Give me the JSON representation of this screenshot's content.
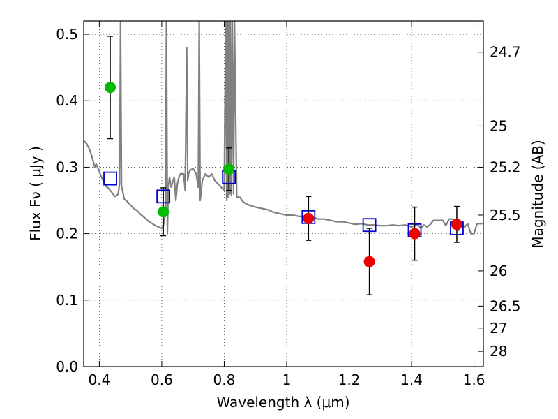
{
  "chart_data": {
    "type": "scatter",
    "xlabel": "Wavelength  λ (μm)",
    "ylabel": "Flux  Fν  ( μJy )",
    "ylabel_right": "Magnitude (AB)",
    "xlim": [
      0.35,
      1.63
    ],
    "ylim": [
      0.0,
      0.52
    ],
    "grid": true,
    "x_ticks": [
      {
        "value": 0.4,
        "label": "0.4"
      },
      {
        "value": 0.6,
        "label": "0.6"
      },
      {
        "value": 0.8,
        "label": "0.8"
      },
      {
        "value": 1.0,
        "label": "1"
      },
      {
        "value": 1.2,
        "label": "1.2"
      },
      {
        "value": 1.4,
        "label": "1.4"
      },
      {
        "value": 1.6,
        "label": "1.6"
      }
    ],
    "y_ticks": [
      {
        "value": 0.0,
        "label": "0.0"
      },
      {
        "value": 0.1,
        "label": "0.1"
      },
      {
        "value": 0.2,
        "label": "0.2"
      },
      {
        "value": 0.3,
        "label": "0.3"
      },
      {
        "value": 0.4,
        "label": "0.4"
      },
      {
        "value": 0.5,
        "label": "0.5"
      }
    ],
    "right_ticks": [
      {
        "flux": 0.473,
        "label": "24.7"
      },
      {
        "flux": 0.362,
        "label": "25"
      },
      {
        "flux": 0.3,
        "label": "25.2"
      },
      {
        "flux": 0.228,
        "label": "25.5"
      },
      {
        "flux": 0.144,
        "label": "26"
      },
      {
        "flux": 0.091,
        "label": "26.5"
      },
      {
        "flux": 0.058,
        "label": "27"
      },
      {
        "flux": 0.023,
        "label": "28"
      }
    ],
    "series": [
      {
        "color": "#808080",
        "kind": "line",
        "x": [
          0.35,
          0.36,
          0.37,
          0.38,
          0.385,
          0.39,
          0.4,
          0.41,
          0.42,
          0.43,
          0.44,
          0.45,
          0.46,
          0.465,
          0.468,
          0.471,
          0.48,
          0.49,
          0.5,
          0.51,
          0.52,
          0.53,
          0.54,
          0.55,
          0.56,
          0.57,
          0.58,
          0.59,
          0.6,
          0.605,
          0.612,
          0.615,
          0.618,
          0.621,
          0.625,
          0.63,
          0.64,
          0.645,
          0.65,
          0.655,
          0.66,
          0.67,
          0.675,
          0.68,
          0.683,
          0.686,
          0.69,
          0.7,
          0.71,
          0.717,
          0.72,
          0.723,
          0.73,
          0.74,
          0.75,
          0.76,
          0.77,
          0.78,
          0.79,
          0.8,
          0.805,
          0.808,
          0.81,
          0.812,
          0.815,
          0.818,
          0.82,
          0.823,
          0.826,
          0.83,
          0.833,
          0.84,
          0.85,
          0.86,
          0.87,
          0.88,
          0.9,
          0.92,
          0.94,
          0.96,
          0.98,
          1.0,
          1.02,
          1.04,
          1.06,
          1.08,
          1.1,
          1.12,
          1.14,
          1.16,
          1.18,
          1.2,
          1.22,
          1.24,
          1.26,
          1.28,
          1.3,
          1.32,
          1.34,
          1.36,
          1.38,
          1.4,
          1.41,
          1.42,
          1.43,
          1.44,
          1.45,
          1.46,
          1.47,
          1.48,
          1.49,
          1.5,
          1.51,
          1.52,
          1.53,
          1.54,
          1.55,
          1.56,
          1.57,
          1.58,
          1.59,
          1.6,
          1.61,
          1.62,
          1.63
        ],
        "y": [
          0.34,
          0.335,
          0.325,
          0.31,
          0.3,
          0.305,
          0.293,
          0.282,
          0.272,
          0.268,
          0.262,
          0.256,
          0.259,
          0.275,
          0.52,
          0.272,
          0.252,
          0.248,
          0.243,
          0.238,
          0.235,
          0.23,
          0.226,
          0.222,
          0.218,
          0.215,
          0.212,
          0.21,
          0.208,
          0.212,
          0.23,
          0.52,
          0.2,
          0.27,
          0.285,
          0.27,
          0.285,
          0.25,
          0.275,
          0.285,
          0.29,
          0.29,
          0.265,
          0.48,
          0.28,
          0.29,
          0.295,
          0.298,
          0.29,
          0.27,
          0.52,
          0.25,
          0.28,
          0.29,
          0.285,
          0.29,
          0.28,
          0.275,
          0.27,
          0.265,
          0.52,
          0.25,
          0.52,
          0.255,
          0.52,
          0.26,
          0.52,
          0.258,
          0.52,
          0.26,
          0.52,
          0.255,
          0.255,
          0.248,
          0.245,
          0.243,
          0.24,
          0.238,
          0.236,
          0.232,
          0.23,
          0.228,
          0.228,
          0.226,
          0.226,
          0.225,
          0.222,
          0.222,
          0.22,
          0.218,
          0.218,
          0.216,
          0.214,
          0.215,
          0.213,
          0.213,
          0.212,
          0.212,
          0.213,
          0.212,
          0.213,
          0.21,
          0.212,
          0.214,
          0.208,
          0.213,
          0.21,
          0.214,
          0.22,
          0.22,
          0.22,
          0.22,
          0.212,
          0.222,
          0.222,
          0.22,
          0.205,
          0.215,
          0.21,
          0.215,
          0.2,
          0.2,
          0.215,
          0.215,
          0.215
        ]
      },
      {
        "color": "#0000cc",
        "kind": "open-square",
        "x": [
          0.435,
          0.605,
          0.815,
          1.07,
          1.265,
          1.41,
          1.545
        ],
        "y": [
          0.283,
          0.256,
          0.285,
          0.225,
          0.213,
          0.205,
          0.208
        ]
      },
      {
        "color": "#00bb00",
        "kind": "errorbar",
        "x": [
          0.435,
          0.605,
          0.815
        ],
        "y": [
          0.42,
          0.233,
          0.297
        ],
        "yerr": [
          0.077,
          0.036,
          0.032
        ]
      },
      {
        "color": "#ee0000",
        "kind": "errorbar",
        "x": [
          1.07,
          1.265,
          1.41,
          1.545
        ],
        "y": [
          0.223,
          0.158,
          0.2,
          0.214
        ],
        "yerr": [
          0.033,
          0.05,
          0.04,
          0.027
        ]
      }
    ]
  }
}
